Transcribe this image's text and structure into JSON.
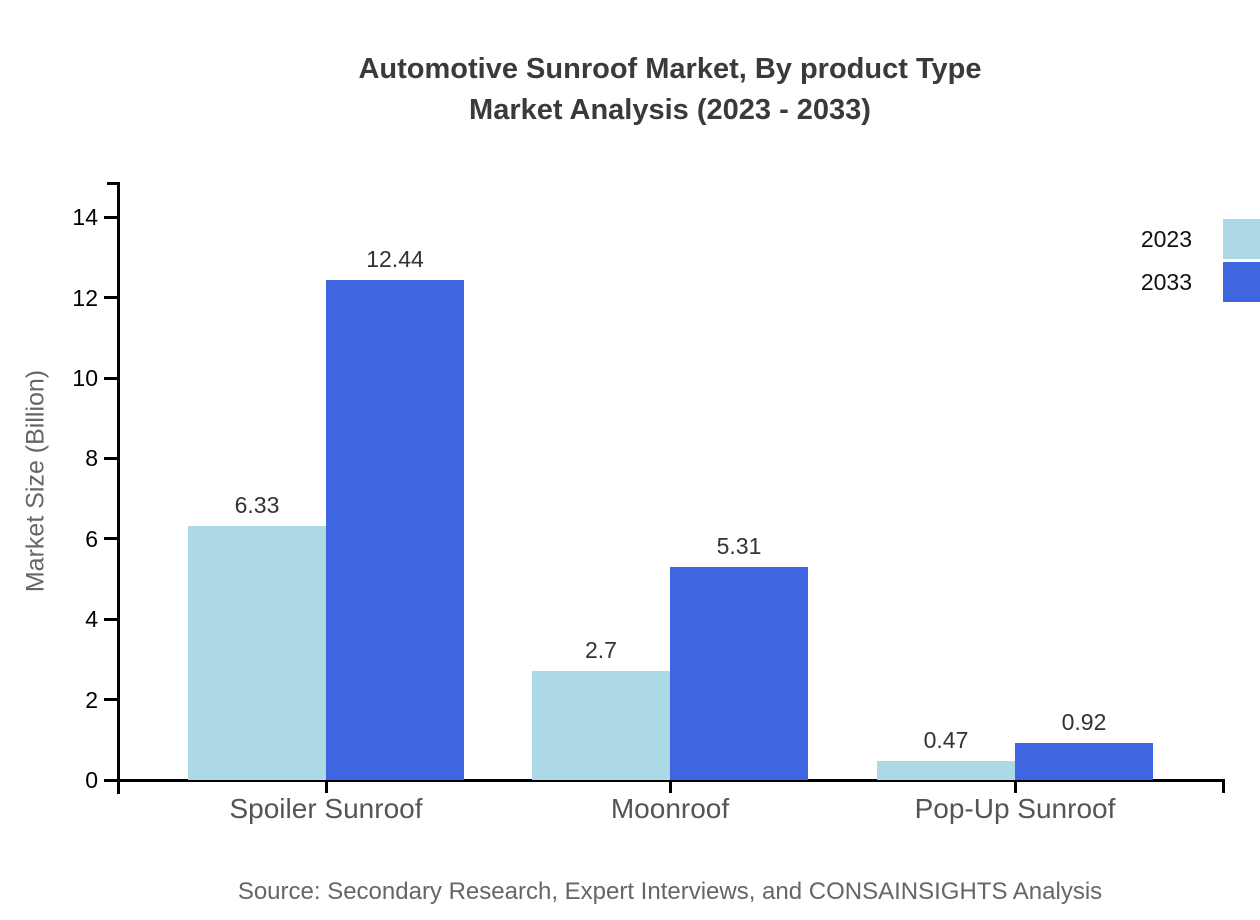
{
  "chart_data": {
    "type": "bar",
    "title": "Automotive Sunroof Market, By product Type\nMarket Analysis (2023 - 2033)",
    "ylabel": "Market Size (Billion)",
    "xlabel": "",
    "categories": [
      "Spoiler Sunroof",
      "Moonroof",
      "Pop-Up Sunroof"
    ],
    "series": [
      {
        "name": "2023",
        "color": "#add8e6",
        "values": [
          6.33,
          2.7,
          0.47
        ]
      },
      {
        "name": "2033",
        "color": "#3f66e0",
        "values": [
          12.44,
          5.31,
          0.92
        ]
      }
    ],
    "yticks": [
      0,
      2,
      4,
      6,
      8,
      10,
      12,
      14
    ],
    "ylim": [
      0,
      14.9
    ],
    "grid": false,
    "legend_position": "top-right",
    "axis_color": "#000000",
    "title_color": "#3a3a3a",
    "label_color": "#555555"
  },
  "footer": {
    "source": "Source: Secondary Research, Expert Interviews, and CONSAINSIGHTS Analysis"
  }
}
